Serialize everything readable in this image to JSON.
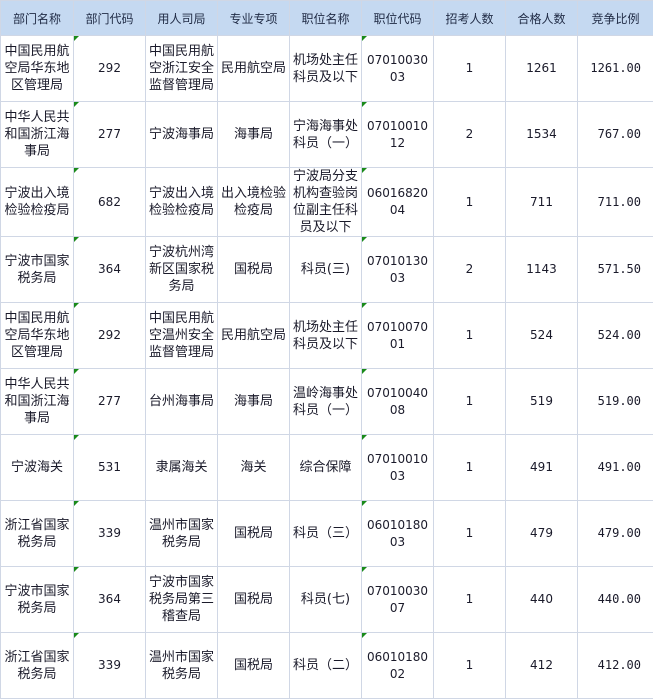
{
  "headers": [
    "部门名称",
    "部门代码",
    "用人司局",
    "专业专项",
    "职位名称",
    "职位代码",
    "招考人数",
    "合格人数",
    "竞争比例"
  ],
  "rows": [
    [
      "中国民用航空局华东地区管理局",
      "292",
      "中国民用航空浙江安全监督管理局",
      "民用航空局",
      "机场处主任科员及以下",
      "0701003003",
      "1",
      "1261",
      "1261.00"
    ],
    [
      "中华人民共和国浙江海事局",
      "277",
      "宁波海事局",
      "海事局",
      "宁海海事处科员（一）",
      "0701001012",
      "2",
      "1534",
      "767.00"
    ],
    [
      "宁波出入境检验检疫局",
      "682",
      "宁波出入境检验检疫局",
      "出入境检验检疫局",
      "宁波局分支机构查验岗位副主任科员及以下",
      "0601682004",
      "1",
      "711",
      "711.00"
    ],
    [
      "宁波市国家税务局",
      "364",
      "宁波杭州湾新区国家税务局",
      "国税局",
      "科员(三)",
      "0701013003",
      "2",
      "1143",
      "571.50"
    ],
    [
      "中国民用航空局华东地区管理局",
      "292",
      "中国民用航空温州安全监督管理局",
      "民用航空局",
      "机场处主任科员及以下",
      "0701007001",
      "1",
      "524",
      "524.00"
    ],
    [
      "中华人民共和国浙江海事局",
      "277",
      "台州海事局",
      "海事局",
      "温岭海事处科员（一）",
      "0701004008",
      "1",
      "519",
      "519.00"
    ],
    [
      "宁波海关",
      "531",
      "隶属海关",
      "海关",
      "综合保障",
      "0701001003",
      "1",
      "491",
      "491.00"
    ],
    [
      "浙江省国家税务局",
      "339",
      "温州市国家税务局",
      "国税局",
      "科员（三）",
      "0601018003",
      "1",
      "479",
      "479.00"
    ],
    [
      "宁波市国家税务局",
      "364",
      "宁波市国家税务局第三稽查局",
      "国税局",
      "科员(七)",
      "0701003007",
      "1",
      "440",
      "440.00"
    ],
    [
      "浙江省国家税务局",
      "339",
      "温州市国家税务局",
      "国税局",
      "科员（二）",
      "0601018002",
      "1",
      "412",
      "412.00"
    ]
  ]
}
